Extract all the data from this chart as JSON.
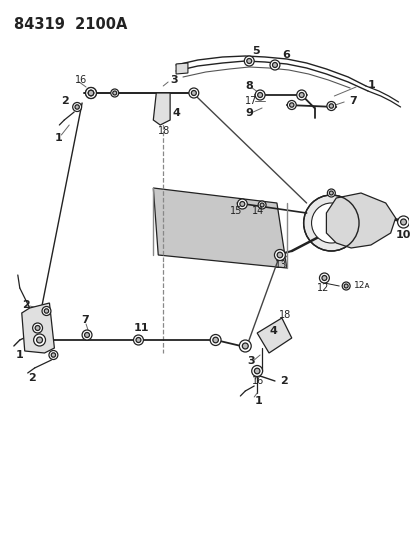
{
  "title": "84319  2100A",
  "bg_color": "#ffffff",
  "line_color": "#222222",
  "label_fontsize": 7,
  "label_bold_fontsize": 8,
  "title_fontsize": 10.5
}
